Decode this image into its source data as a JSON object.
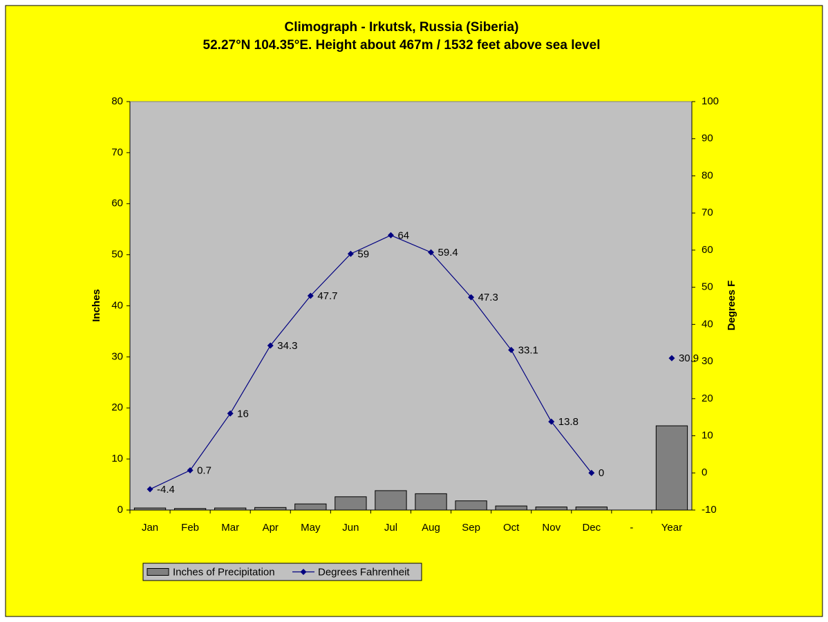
{
  "chart_data": {
    "type": "bar-line",
    "title": "Climograph - Irkutsk, Russia (Siberia)",
    "subtitle": "52.27°N 104.35°E. Height about 467m / 1532 feet above sea level",
    "ylabel": "Inches",
    "y2label": "Degrees F",
    "categories": [
      "Jan",
      "Feb",
      "Mar",
      "Apr",
      "May",
      "Jun",
      "Jul",
      "Aug",
      "Sep",
      "Oct",
      "Nov",
      "Dec",
      "-",
      "Year"
    ],
    "series": [
      {
        "name": "Inches of Precipitation",
        "type": "bar",
        "color": "#808080",
        "values": [
          0.4,
          0.3,
          0.4,
          0.5,
          1.2,
          2.6,
          3.8,
          3.2,
          1.8,
          0.8,
          0.6,
          0.6,
          null,
          16.5
        ]
      },
      {
        "name": "Degrees Fahrenheit",
        "type": "line",
        "axis": "y2",
        "color": "#000080",
        "values": [
          -4.4,
          0.7,
          16,
          34.3,
          47.7,
          59,
          64,
          59.4,
          47.3,
          33.1,
          13.8,
          0,
          null,
          30.9
        ]
      }
    ],
    "ylim": [
      0,
      80
    ],
    "yticks": [
      0,
      10,
      20,
      30,
      40,
      50,
      60,
      70,
      80
    ],
    "y2lim": [
      -10,
      100
    ],
    "y2ticks": [
      -10,
      0,
      10,
      20,
      30,
      40,
      50,
      60,
      70,
      80,
      90,
      100
    ],
    "legend": "bottom",
    "background": "#ffff00",
    "plot_background": "#c0c0c0"
  }
}
